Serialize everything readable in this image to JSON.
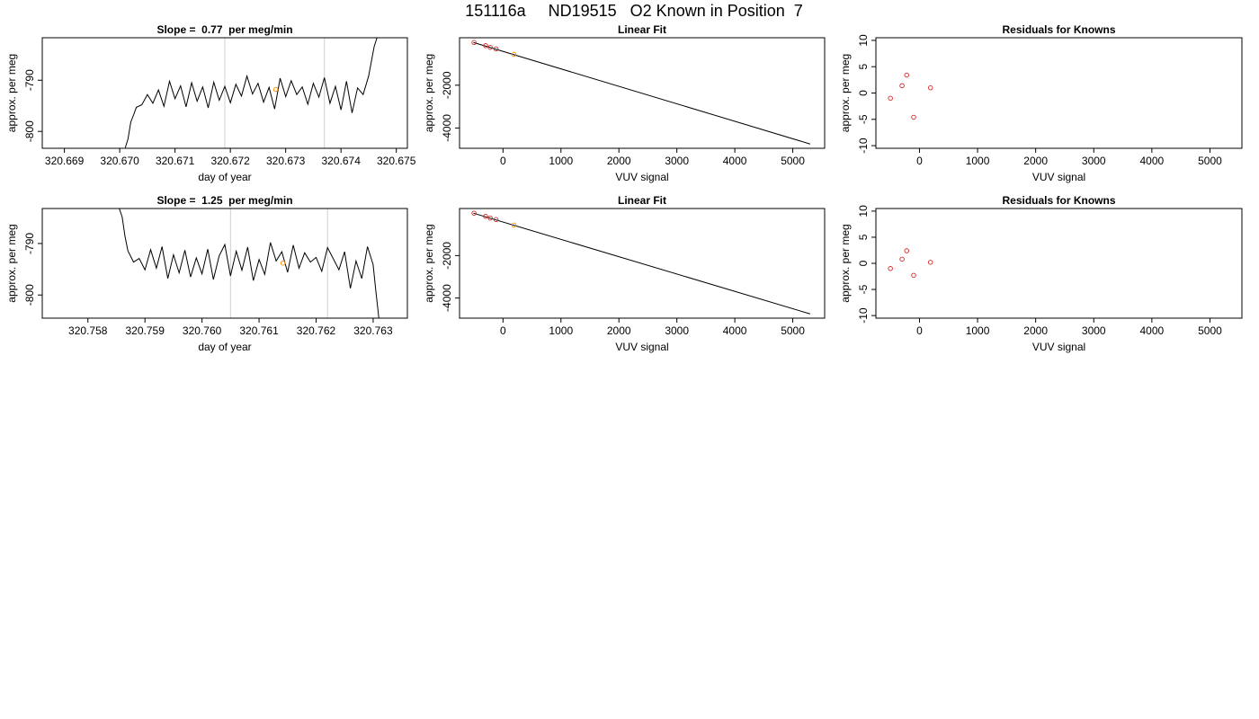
{
  "figure_title": "151116a     ND19515   O2 Known in Position  7",
  "colors": {
    "known_point": "#d62728",
    "current_point": "#ff8c00",
    "line": "#000000",
    "guide": "#cfcfcf"
  },
  "chart_data": [
    {
      "type": "line",
      "title": "Slope =  0.77  per meg/min",
      "xlabel": "day of year",
      "ylabel": "approx. per meg",
      "xlim": [
        320.6686,
        320.6752
      ],
      "ylim": [
        -803.3,
        -781.7
      ],
      "xticks": [
        320.669,
        320.67,
        320.671,
        320.672,
        320.673,
        320.674,
        320.675
      ],
      "xtick_labels": [
        "320.669",
        "320.670",
        "320.671",
        "320.672",
        "320.673",
        "320.674",
        "320.675"
      ],
      "yticks": [
        -800,
        -790
      ],
      "ytick_labels": [
        "-800",
        "-790"
      ],
      "vlines": [
        320.6719,
        320.6737
      ],
      "series": [
        {
          "x": [
            320.6701,
            320.67015,
            320.6702,
            320.67025,
            320.6703,
            320.6704,
            320.6705,
            320.6706,
            320.6707,
            320.6708,
            320.6709,
            320.671,
            320.6711,
            320.6712,
            320.6713,
            320.6714,
            320.6715,
            320.6716,
            320.6717,
            320.6718,
            320.6719,
            320.672,
            320.6721,
            320.6722,
            320.6723,
            320.6724,
            320.6725,
            320.6726,
            320.6727,
            320.6728,
            320.6729,
            320.673,
            320.6731,
            320.6732,
            320.6733,
            320.6734,
            320.6735,
            320.6736,
            320.6737,
            320.6738,
            320.6739,
            320.674,
            320.6741,
            320.6742,
            320.6743,
            320.6744,
            320.6745,
            320.6746,
            320.67465
          ],
          "y": [
            -803.2,
            -801.5,
            -798.2,
            -796.8,
            -795.3,
            -794.8,
            -792.8,
            -794.5,
            -791.9,
            -795.1,
            -790.2,
            -793.6,
            -791.1,
            -795.2,
            -790.5,
            -794.1,
            -791.3,
            -795.4,
            -790.4,
            -793.9,
            -791.2,
            -794.4,
            -790.8,
            -793.1,
            -789.2,
            -792.7,
            -790.6,
            -794.3,
            -791.4,
            -795.6,
            -789.6,
            -793.2,
            -790.1,
            -792.8,
            -791.3,
            -794.7,
            -790.6,
            -793.3,
            -789.5,
            -794.5,
            -791.2,
            -795.8,
            -790.2,
            -796.4,
            -791.5,
            -792.8,
            -789.2,
            -783.4,
            -781.7
          ]
        }
      ],
      "points": [
        {
          "x": 320.67282,
          "y": -791.8,
          "kind": "current"
        }
      ]
    },
    {
      "type": "scatter",
      "title": "Linear Fit",
      "xlabel": "VUV signal",
      "ylabel": "approx. per meg",
      "xlim": [
        -750,
        5550
      ],
      "ylim": [
        -4950,
        220
      ],
      "xticks": [
        0,
        1000,
        2000,
        3000,
        4000,
        5000
      ],
      "xtick_labels": [
        "0",
        "1000",
        "2000",
        "3000",
        "4000",
        "5000"
      ],
      "yticks": [
        -4000,
        -2000
      ],
      "ytick_labels": [
        "-4000",
        "-2000"
      ],
      "fit_line": {
        "x": [
          -510,
          5300
        ],
        "y": [
          0,
          -4750
        ]
      },
      "points": [
        {
          "x": -500,
          "y": -2,
          "kind": "known"
        },
        {
          "x": -300,
          "y": -150,
          "kind": "known"
        },
        {
          "x": -220,
          "y": -230,
          "kind": "known"
        },
        {
          "x": -120,
          "y": -300,
          "kind": "known"
        },
        {
          "x": 190,
          "y": -560,
          "kind": "current"
        }
      ]
    },
    {
      "type": "scatter",
      "title": "Residuals for Knowns",
      "xlabel": "VUV signal",
      "ylabel": "approx. per meg",
      "xlim": [
        -750,
        5550
      ],
      "ylim": [
        -10.5,
        10.5
      ],
      "xticks": [
        0,
        1000,
        2000,
        3000,
        4000,
        5000
      ],
      "xtick_labels": [
        "0",
        "1000",
        "2000",
        "3000",
        "4000",
        "5000"
      ],
      "yticks": [
        -10,
        -5,
        0,
        5,
        10
      ],
      "ytick_labels": [
        "-10",
        "-5",
        "0",
        "5",
        "10"
      ],
      "points": [
        {
          "x": -500,
          "y": -1,
          "kind": "known"
        },
        {
          "x": -300,
          "y": 1.4,
          "kind": "known"
        },
        {
          "x": -220,
          "y": 3.4,
          "kind": "known"
        },
        {
          "x": -100,
          "y": -4.6,
          "kind": "known"
        },
        {
          "x": 190,
          "y": 1.0,
          "kind": "known"
        }
      ]
    },
    {
      "type": "line",
      "title": "Slope =  1.25  per meg/min",
      "xlabel": "day of year",
      "ylabel": "approx. per meg",
      "xlim": [
        320.7572,
        320.7636
      ],
      "ylim": [
        -804.5,
        -783.2
      ],
      "xticks": [
        320.758,
        320.759,
        320.76,
        320.761,
        320.762,
        320.763
      ],
      "xtick_labels": [
        "320.758",
        "320.759",
        "320.760",
        "320.761",
        "320.762",
        "320.763"
      ],
      "yticks": [
        -800,
        -790
      ],
      "ytick_labels": [
        "-800",
        "-790"
      ],
      "vlines": [
        320.7605,
        320.7622
      ],
      "series": [
        {
          "x": [
            320.75855,
            320.7586,
            320.75865,
            320.7587,
            320.7588,
            320.7589,
            320.759,
            320.7591,
            320.7592,
            320.7593,
            320.7594,
            320.7595,
            320.7596,
            320.7597,
            320.7598,
            320.7599,
            320.76,
            320.7601,
            320.7602,
            320.7603,
            320.7604,
            320.7605,
            320.7606,
            320.7607,
            320.7608,
            320.7609,
            320.761,
            320.7611,
            320.7612,
            320.7613,
            320.7614,
            320.7615,
            320.7616,
            320.7617,
            320.7618,
            320.7619,
            320.762,
            320.7621,
            320.7622,
            320.7623,
            320.7624,
            320.7625,
            320.7626,
            320.7627,
            320.7628,
            320.7629,
            320.763,
            320.76305,
            320.7631
          ],
          "y": [
            -783.2,
            -784.8,
            -788.6,
            -791.4,
            -793.6,
            -792.9,
            -795.1,
            -791.2,
            -794.8,
            -790.6,
            -796.8,
            -792.2,
            -795.7,
            -791.3,
            -796.5,
            -792.8,
            -795.9,
            -791.1,
            -797.0,
            -792.4,
            -790.2,
            -796.3,
            -791.5,
            -795.2,
            -790.7,
            -797.2,
            -793.1,
            -796.0,
            -789.8,
            -793.4,
            -791.6,
            -795.6,
            -790.3,
            -794.8,
            -791.8,
            -793.6,
            -792.7,
            -795.4,
            -790.8,
            -792.9,
            -795.1,
            -791.6,
            -798.7,
            -793.4,
            -796.8,
            -790.6,
            -794.1,
            -799.5,
            -804.5
          ]
        }
      ],
      "points": [
        {
          "x": 320.76142,
          "y": -793.8,
          "kind": "current"
        }
      ]
    },
    {
      "type": "scatter",
      "title": "Linear Fit",
      "xlabel": "VUV signal",
      "ylabel": "approx. per meg",
      "xlim": [
        -750,
        5550
      ],
      "ylim": [
        -4950,
        220
      ],
      "xticks": [
        0,
        1000,
        2000,
        3000,
        4000,
        5000
      ],
      "xtick_labels": [
        "0",
        "1000",
        "2000",
        "3000",
        "4000",
        "5000"
      ],
      "yticks": [
        -4000,
        -2000
      ],
      "ytick_labels": [
        "-4000",
        "-2000"
      ],
      "fit_line": {
        "x": [
          -510,
          5300
        ],
        "y": [
          0,
          -4750
        ]
      },
      "points": [
        {
          "x": -500,
          "y": -2,
          "kind": "known"
        },
        {
          "x": -300,
          "y": -150,
          "kind": "known"
        },
        {
          "x": -220,
          "y": -230,
          "kind": "known"
        },
        {
          "x": -120,
          "y": -300,
          "kind": "known"
        },
        {
          "x": 190,
          "y": -560,
          "kind": "current"
        }
      ]
    },
    {
      "type": "scatter",
      "title": "Residuals for Knowns",
      "xlabel": "VUV signal",
      "ylabel": "approx. per meg",
      "xlim": [
        -750,
        5550
      ],
      "ylim": [
        -10.5,
        10.5
      ],
      "xticks": [
        0,
        1000,
        2000,
        3000,
        4000,
        5000
      ],
      "xtick_labels": [
        "0",
        "1000",
        "2000",
        "3000",
        "4000",
        "5000"
      ],
      "yticks": [
        -10,
        -5,
        0,
        5,
        10
      ],
      "ytick_labels": [
        "-10",
        "-5",
        "0",
        "5",
        "10"
      ],
      "points": [
        {
          "x": -500,
          "y": -1,
          "kind": "known"
        },
        {
          "x": -300,
          "y": 0.8,
          "kind": "known"
        },
        {
          "x": -220,
          "y": 2.4,
          "kind": "known"
        },
        {
          "x": -100,
          "y": -2.3,
          "kind": "known"
        },
        {
          "x": 190,
          "y": 0.2,
          "kind": "known"
        }
      ]
    }
  ]
}
